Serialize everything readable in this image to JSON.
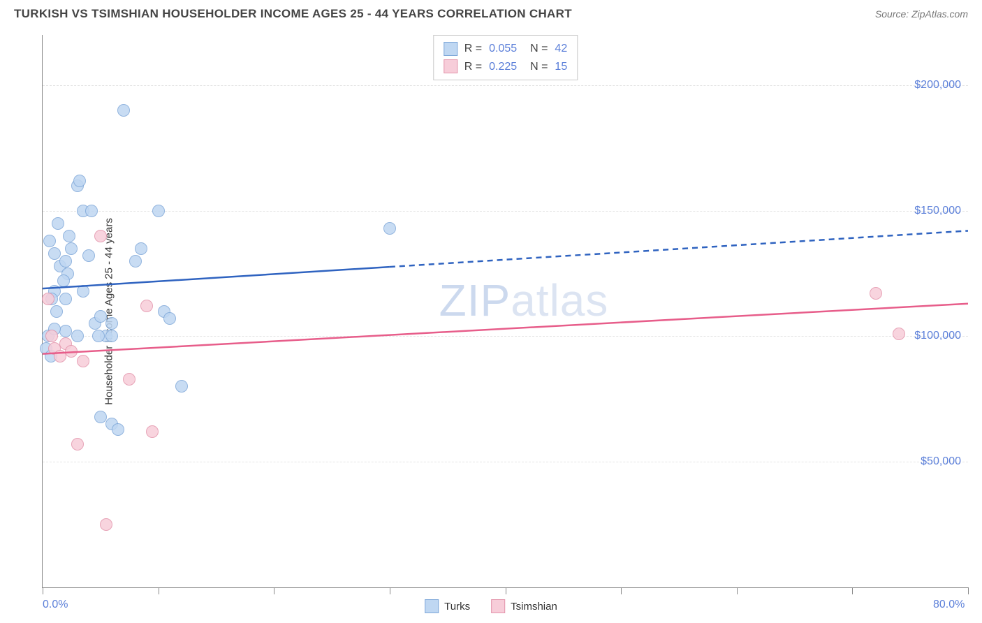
{
  "header": {
    "title": "TURKISH VS TSIMSHIAN HOUSEHOLDER INCOME AGES 25 - 44 YEARS CORRELATION CHART",
    "source": "Source: ZipAtlas.com"
  },
  "chart": {
    "type": "scatter",
    "y_label": "Householder Income Ages 25 - 44 years",
    "xlim": [
      0,
      80
    ],
    "ylim": [
      0,
      220000
    ],
    "x_ticks": [
      0,
      10,
      20,
      30,
      40,
      50,
      60,
      70,
      80
    ],
    "x_axis_labels": [
      {
        "pos": 0,
        "text": "0.0%"
      },
      {
        "pos": 80,
        "text": "80.0%"
      }
    ],
    "y_gridlines": [
      50000,
      100000,
      150000,
      200000
    ],
    "y_tick_labels": [
      {
        "val": 50000,
        "text": "$50,000"
      },
      {
        "val": 100000,
        "text": "$100,000"
      },
      {
        "val": 150000,
        "text": "$150,000"
      },
      {
        "val": 200000,
        "text": "$200,000"
      }
    ],
    "background_color": "#ffffff",
    "grid_color": "#e4e4e4",
    "axis_color": "#888888",
    "tick_label_color": "#5b7fd9",
    "watermark": "ZIPatlas",
    "series": [
      {
        "name": "Turks",
        "fill_color": "#bfd7f2",
        "stroke_color": "#7fa8d9",
        "line_color": "#2f63c0",
        "r": "0.055",
        "n": "42",
        "trend": {
          "x1": 0,
          "y1": 119000,
          "x2": 80,
          "y2": 142000,
          "solid_until_x": 30
        },
        "points": [
          {
            "x": 1.0,
            "y": 118000
          },
          {
            "x": 0.8,
            "y": 115000
          },
          {
            "x": 1.2,
            "y": 110000
          },
          {
            "x": 0.5,
            "y": 100000
          },
          {
            "x": 0.3,
            "y": 95000
          },
          {
            "x": 0.7,
            "y": 92000
          },
          {
            "x": 1.5,
            "y": 128000
          },
          {
            "x": 2.0,
            "y": 130000
          },
          {
            "x": 2.2,
            "y": 125000
          },
          {
            "x": 2.5,
            "y": 135000
          },
          {
            "x": 3.0,
            "y": 160000
          },
          {
            "x": 3.2,
            "y": 162000
          },
          {
            "x": 3.5,
            "y": 150000
          },
          {
            "x": 4.0,
            "y": 132000
          },
          {
            "x": 4.5,
            "y": 105000
          },
          {
            "x": 5.0,
            "y": 108000
          },
          {
            "x": 5.5,
            "y": 100000
          },
          {
            "x": 6.0,
            "y": 100000
          },
          {
            "x": 7.0,
            "y": 190000
          },
          {
            "x": 8.0,
            "y": 130000
          },
          {
            "x": 8.5,
            "y": 135000
          },
          {
            "x": 10.0,
            "y": 150000
          },
          {
            "x": 10.5,
            "y": 110000
          },
          {
            "x": 11.0,
            "y": 107000
          },
          {
            "x": 12.0,
            "y": 80000
          },
          {
            "x": 5.0,
            "y": 68000
          },
          {
            "x": 6.0,
            "y": 65000
          },
          {
            "x": 6.5,
            "y": 63000
          },
          {
            "x": 3.0,
            "y": 100000
          },
          {
            "x": 2.0,
            "y": 102000
          },
          {
            "x": 1.8,
            "y": 122000
          },
          {
            "x": 2.3,
            "y": 140000
          },
          {
            "x": 1.0,
            "y": 133000
          },
          {
            "x": 0.6,
            "y": 138000
          },
          {
            "x": 1.3,
            "y": 145000
          },
          {
            "x": 2.0,
            "y": 115000
          },
          {
            "x": 3.5,
            "y": 118000
          },
          {
            "x": 4.2,
            "y": 150000
          },
          {
            "x": 4.8,
            "y": 100000
          },
          {
            "x": 6.0,
            "y": 105000
          },
          {
            "x": 1.0,
            "y": 103000
          },
          {
            "x": 30.0,
            "y": 143000
          }
        ]
      },
      {
        "name": "Tsimshian",
        "fill_color": "#f7cdd9",
        "stroke_color": "#e394ab",
        "line_color": "#e75d8a",
        "r": "0.225",
        "n": "15",
        "trend": {
          "x1": 0,
          "y1": 93000,
          "x2": 80,
          "y2": 113000,
          "solid_until_x": 80
        },
        "points": [
          {
            "x": 0.5,
            "y": 115000
          },
          {
            "x": 0.8,
            "y": 100000
          },
          {
            "x": 1.0,
            "y": 95000
          },
          {
            "x": 1.5,
            "y": 92000
          },
          {
            "x": 2.0,
            "y": 97000
          },
          {
            "x": 2.5,
            "y": 94000
          },
          {
            "x": 3.5,
            "y": 90000
          },
          {
            "x": 5.0,
            "y": 140000
          },
          {
            "x": 7.5,
            "y": 83000
          },
          {
            "x": 9.0,
            "y": 112000
          },
          {
            "x": 9.5,
            "y": 62000
          },
          {
            "x": 3.0,
            "y": 57000
          },
          {
            "x": 5.5,
            "y": 25000
          },
          {
            "x": 72.0,
            "y": 117000
          },
          {
            "x": 74.0,
            "y": 101000
          }
        ]
      }
    ],
    "legend_bottom": [
      {
        "label": "Turks",
        "fill": "#bfd7f2",
        "stroke": "#7fa8d9"
      },
      {
        "label": "Tsimshian",
        "fill": "#f7cdd9",
        "stroke": "#e394ab"
      }
    ]
  }
}
